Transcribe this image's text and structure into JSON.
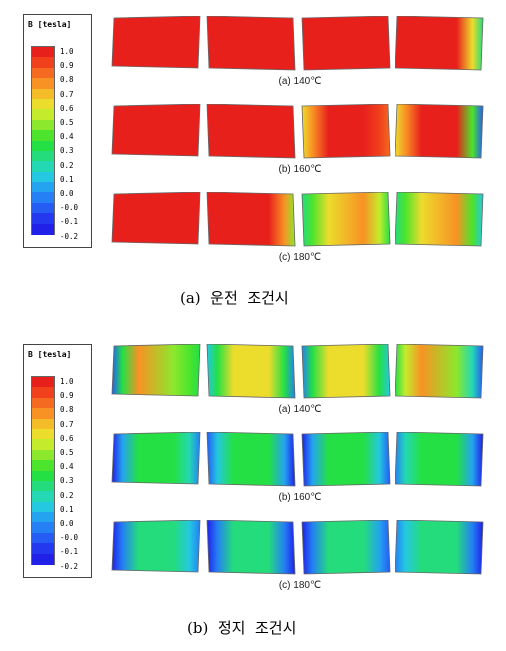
{
  "legend": {
    "title": "B [tesla]",
    "ticks": [
      "1.0",
      "0.9",
      "0.8",
      "0.7",
      "0.6",
      "0.5",
      "0.4",
      "0.3",
      "0.2",
      "0.1",
      "0.0",
      "-0.0",
      "-0.1",
      "-0.2"
    ]
  },
  "colorscale": [
    "#e8201c",
    "#f0401c",
    "#f46a20",
    "#f89224",
    "#f4bc28",
    "#ecdc2c",
    "#c4ec2c",
    "#8ce82c",
    "#4ce42c",
    "#24e044",
    "#24dc7c",
    "#24d8b4",
    "#24c8e0",
    "#24a4f0",
    "#2480f4",
    "#245cf4",
    "#2438f0",
    "#2020e8"
  ],
  "sections": [
    {
      "caption": "(a)  운전  조건시",
      "rows": [
        {
          "label": "(a) 140℃",
          "panels": [
            [
              0,
              0,
              0,
              0
            ],
            [
              0,
              0,
              0,
              0
            ],
            [
              0,
              0,
              0,
              0
            ],
            [
              0,
              0,
              0,
              0.6
            ]
          ]
        },
        {
          "label": "(b) 160℃",
          "panels": [
            [
              0,
              0,
              0,
              0
            ],
            [
              0,
              0,
              0,
              0
            ],
            [
              0.3,
              0,
              0,
              0.1
            ],
            [
              0.3,
              0,
              0,
              0.9
            ]
          ]
        },
        {
          "label": "(c) 180℃",
          "panels": [
            [
              0,
              0,
              0,
              0
            ],
            [
              0,
              0,
              0,
              0.4
            ],
            [
              0.6,
              0.3,
              0.2,
              0.5
            ],
            [
              0.6,
              0.3,
              0.2,
              0.7
            ]
          ]
        }
      ]
    },
    {
      "caption": "(b)  정지  조건시",
      "rows": [
        {
          "label": "(a) 140℃",
          "panels": [
            [
              0.9,
              0.2,
              0.4,
              0.5
            ],
            [
              0.7,
              0.3,
              0.3,
              0.8
            ],
            [
              0.8,
              0.3,
              0.3,
              0.7
            ],
            [
              0.5,
              0.2,
              0.4,
              0.9
            ]
          ]
        },
        {
          "label": "(b) 160℃",
          "panels": [
            [
              1,
              0.5,
              0.5,
              0.8
            ],
            [
              0.9,
              0.5,
              0.5,
              1
            ],
            [
              1,
              0.5,
              0.5,
              0.9
            ],
            [
              0.8,
              0.5,
              0.5,
              1
            ]
          ]
        },
        {
          "label": "(c) 180℃",
          "panels": [
            [
              1,
              0.6,
              0.6,
              0.8
            ],
            [
              1,
              0.6,
              0.6,
              1
            ],
            [
              1,
              0.6,
              0.6,
              0.9
            ],
            [
              0.8,
              0.6,
              0.6,
              1
            ]
          ]
        }
      ]
    }
  ]
}
